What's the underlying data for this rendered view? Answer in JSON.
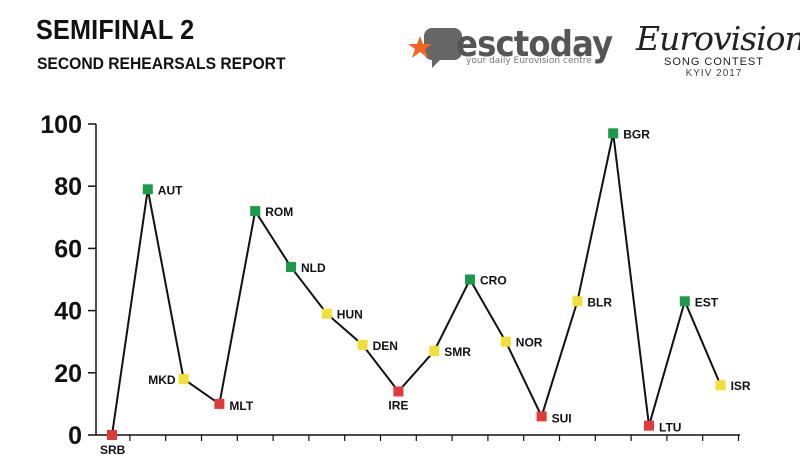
{
  "header": {
    "title": "SEMIFINAL 2",
    "subtitle": "SECOND REHEARSALS REPORT"
  },
  "logos": {
    "esctoday": {
      "word": "esctoday",
      "tagline": "your daily Eurovision centre"
    },
    "eurovision": {
      "word": "Eurovision",
      "sub": "SONG CONTEST",
      "city": "KYIV 2017",
      "heart_colors": [
        "#0057b7",
        "#ffd700"
      ]
    }
  },
  "colors": {
    "green": "#1a9a4a",
    "yellow": "#f2e03a",
    "red": "#e23a3a",
    "line": "#111111",
    "accent_orange": "#f26522"
  },
  "chart_data": {
    "type": "line",
    "title": "SEMIFINAL 2",
    "subtitle": "SECOND REHEARSALS REPORT",
    "xlabel": "",
    "ylabel": "",
    "ylim": [
      0,
      100
    ],
    "yticks": [
      0,
      20,
      40,
      60,
      80,
      100
    ],
    "grid": false,
    "legend": "none",
    "points": [
      {
        "label": "SRB",
        "value": 0,
        "rating": "red"
      },
      {
        "label": "AUT",
        "value": 79,
        "rating": "green"
      },
      {
        "label": "MKD",
        "value": 18,
        "rating": "yellow"
      },
      {
        "label": "MLT",
        "value": 10,
        "rating": "red"
      },
      {
        "label": "ROM",
        "value": 72,
        "rating": "green"
      },
      {
        "label": "NLD",
        "value": 54,
        "rating": "green"
      },
      {
        "label": "HUN",
        "value": 39,
        "rating": "yellow"
      },
      {
        "label": "DEN",
        "value": 29,
        "rating": "yellow"
      },
      {
        "label": "IRE",
        "value": 14,
        "rating": "red"
      },
      {
        "label": "SMR",
        "value": 27,
        "rating": "yellow"
      },
      {
        "label": "CRO",
        "value": 50,
        "rating": "green"
      },
      {
        "label": "NOR",
        "value": 30,
        "rating": "yellow"
      },
      {
        "label": "SUI",
        "value": 6,
        "rating": "red"
      },
      {
        "label": "BLR",
        "value": 43,
        "rating": "yellow"
      },
      {
        "label": "BGR",
        "value": 97,
        "rating": "green"
      },
      {
        "label": "LTU",
        "value": 3,
        "rating": "red"
      },
      {
        "label": "EST",
        "value": 43,
        "rating": "green"
      },
      {
        "label": "ISR",
        "value": 16,
        "rating": "yellow"
      }
    ]
  }
}
